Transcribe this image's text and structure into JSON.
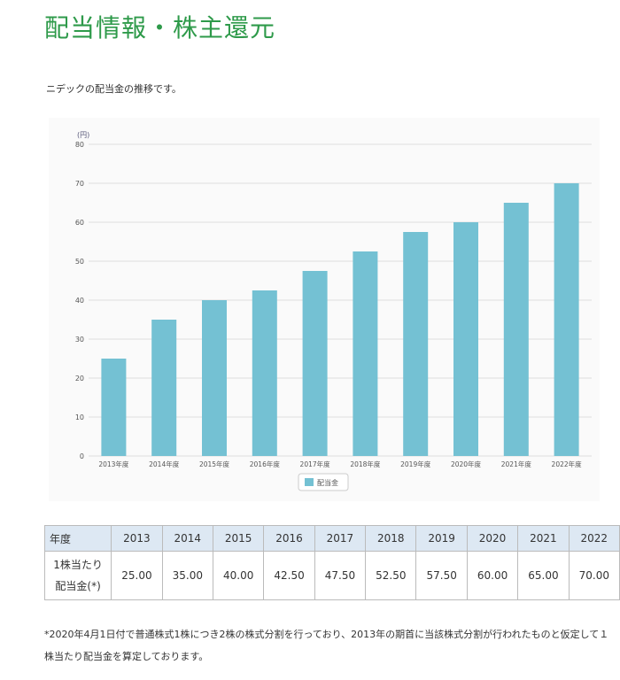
{
  "title": "配当情報・株主還元",
  "intro": "ニデックの配当金の推移です。",
  "chart_data": {
    "type": "bar",
    "categories": [
      "2013年度",
      "2014年度",
      "2015年度",
      "2016年度",
      "2017年度",
      "2018年度",
      "2019年度",
      "2020年度",
      "2021年度",
      "2022年度"
    ],
    "series": [
      {
        "name": "配当金",
        "values": [
          25,
          35,
          40,
          42.5,
          47.5,
          52.5,
          57.5,
          60,
          65,
          70
        ]
      }
    ],
    "ylabel": "(円)",
    "ylim": [
      0,
      80
    ],
    "yticks": [
      0,
      10,
      20,
      30,
      40,
      50,
      60,
      70,
      80
    ],
    "grid": true,
    "legend": "bottom",
    "color": "#74c1d3"
  },
  "table": {
    "header_label": "年度",
    "years": [
      "2013",
      "2014",
      "2015",
      "2016",
      "2017",
      "2018",
      "2019",
      "2020",
      "2021",
      "2022"
    ],
    "row_label_1": "1株当たり",
    "row_label_2": "配当金(*)",
    "values": [
      "25.00",
      "35.00",
      "40.00",
      "42.50",
      "47.50",
      "52.50",
      "57.50",
      "60.00",
      "65.00",
      "70.00"
    ]
  },
  "note": "*2020年4月1日付で普通株式1株につき2株の株式分割を行っており、2013年の期首に当該株式分割が行われたものと仮定して１株当たり配当金を算定しております。"
}
